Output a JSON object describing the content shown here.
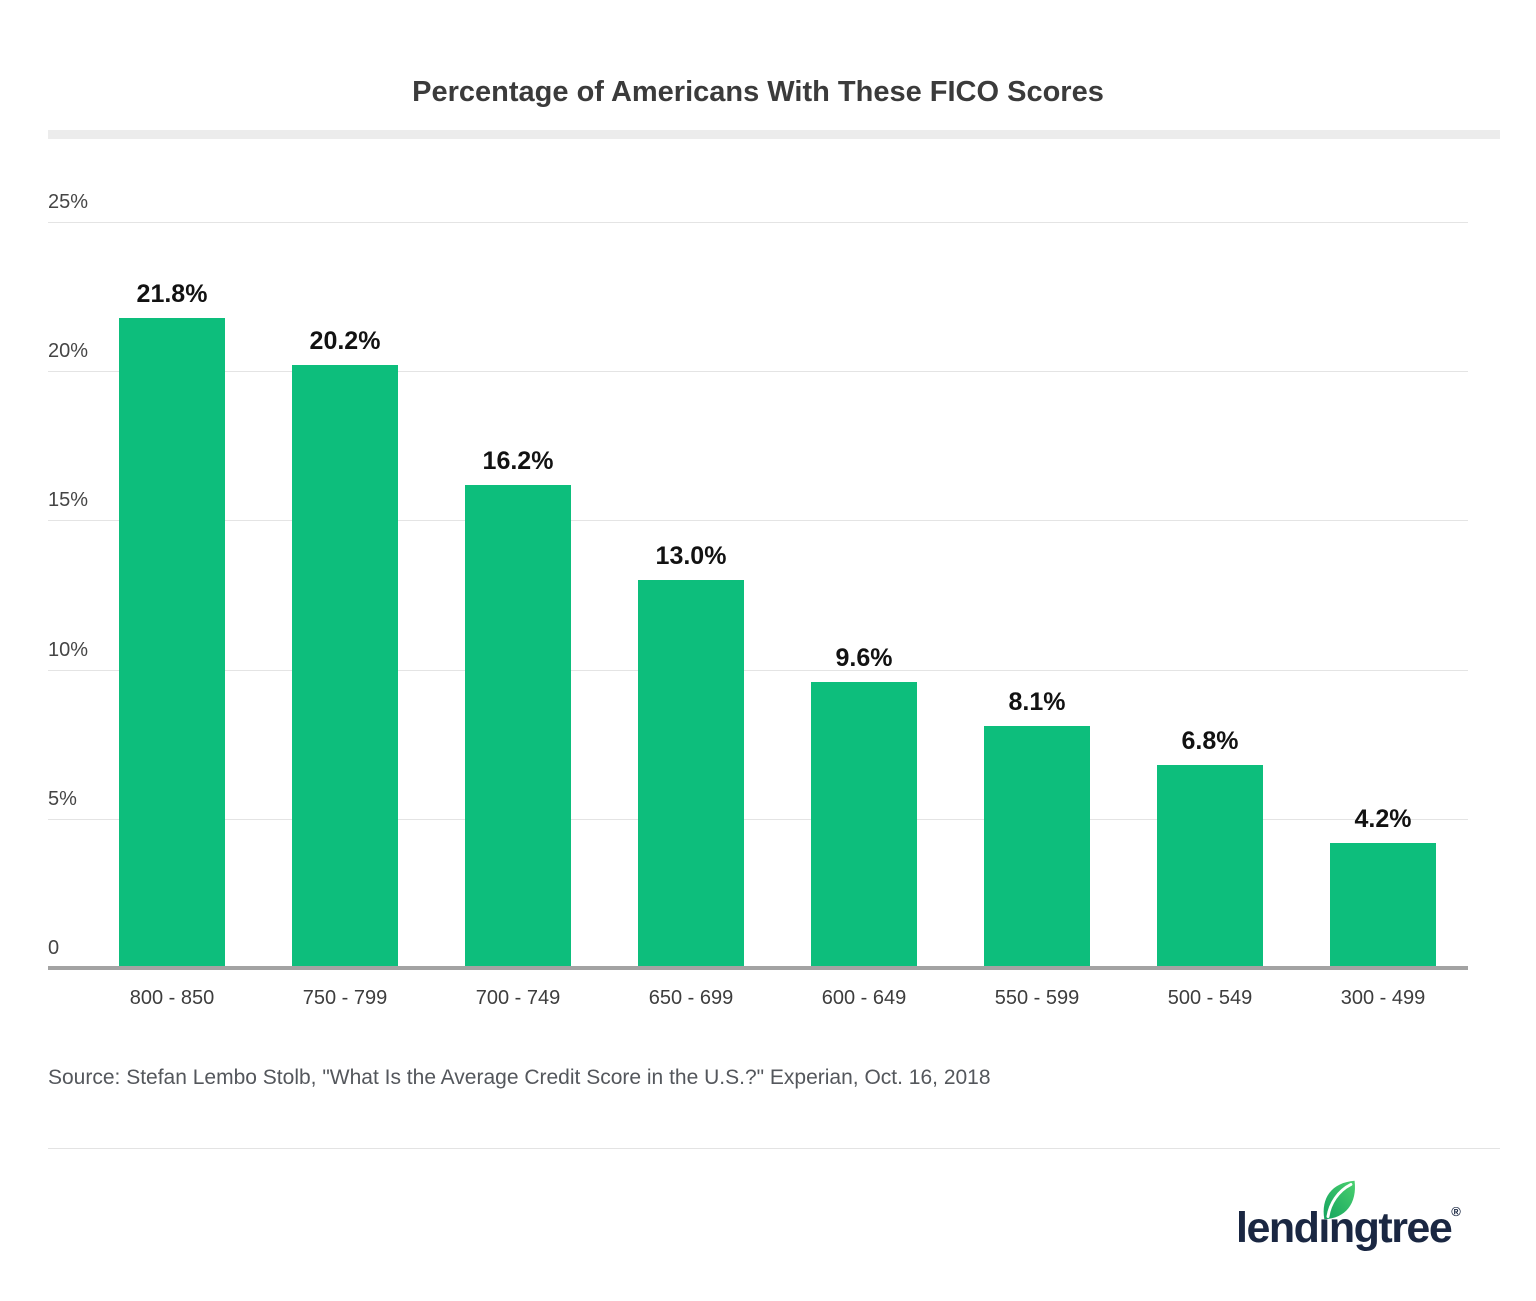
{
  "chart_data": {
    "type": "bar",
    "title": "Percentage of Americans With These FICO Scores",
    "categories": [
      "800 - 850",
      "750 - 799",
      "700 - 749",
      "650 - 699",
      "600 - 649",
      "550 - 599",
      "500 - 549",
      "300 - 499"
    ],
    "values": [
      21.8,
      20.2,
      16.2,
      13.0,
      9.6,
      8.1,
      6.8,
      4.2
    ],
    "value_labels": [
      "21.8%",
      "20.2%",
      "16.2%",
      "13.0%",
      "9.6%",
      "8.1%",
      "6.8%",
      "4.2%"
    ],
    "xlabel": "",
    "ylabel": "",
    "ylim": [
      0,
      25
    ],
    "y_ticks": [
      {
        "label": "25%",
        "value": 25
      },
      {
        "label": "20%",
        "value": 20
      },
      {
        "label": "15%",
        "value": 15
      },
      {
        "label": "10%",
        "value": 10
      },
      {
        "label": "5%",
        "value": 5
      },
      {
        "label": "0",
        "value": 0
      }
    ],
    "grid": true,
    "legend": false,
    "bar_color": "#0dbe7c"
  },
  "footer": {
    "source": "Source: Stefan Lembo Stolb, \"What Is the Average Credit Score in the U.S.?\" Experian, Oct. 16, 2018",
    "brand": "lendingtree",
    "registered": "®"
  },
  "colors": {
    "bar_green": "#0dbe7c",
    "title_text": "#3b3b3b",
    "value_text": "#121212",
    "tick_text": "#454545",
    "category_text": "#3d3d3d",
    "source_text": "#54575c",
    "gridline": "#e4e4e4",
    "axis_line": "#a3a3a3",
    "top_band": "#ececec",
    "brand_navy": "#1a2742",
    "leaf_green_dark": "#14a35e",
    "leaf_green_light": "#4ad06f"
  }
}
